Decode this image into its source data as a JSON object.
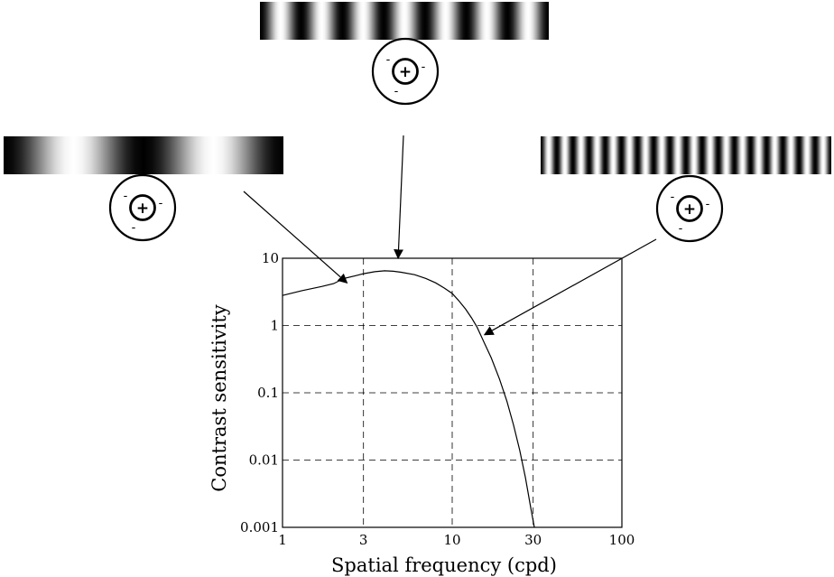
{
  "chart_data": {
    "type": "line",
    "xlabel": "Spatial frequency (cpd)",
    "ylabel": "Contrast sensitivity",
    "x_scale": "log",
    "y_scale": "log",
    "xlim": [
      1,
      100
    ],
    "ylim": [
      0.001,
      10
    ],
    "x_ticks": [
      1,
      3,
      10,
      30,
      100
    ],
    "x_tick_labels": [
      "1",
      "3",
      "10",
      "30",
      "100"
    ],
    "y_ticks": [
      0.001,
      0.01,
      0.1,
      1,
      10
    ],
    "y_tick_labels": [
      "0.001",
      "0.01",
      "0.1",
      "1",
      "10"
    ],
    "grid": true,
    "grid_style": "dashed",
    "series": [
      {
        "color": "#000000",
        "x": [
          1.0,
          1.3,
          1.7,
          2.0,
          2.3,
          2.7,
          3.0,
          3.5,
          4.0,
          4.5,
          5.0,
          6.0,
          7.0,
          8.0,
          9.0,
          10.0,
          11.0,
          12.0,
          13.0,
          14.0,
          15.0,
          17.0,
          19.0,
          21.0,
          23.0,
          25.0,
          27.0,
          29.0,
          30.5
        ],
        "y": [
          2.8,
          3.3,
          3.8,
          4.2,
          5.0,
          5.5,
          5.9,
          6.3,
          6.5,
          6.4,
          6.2,
          5.7,
          5.0,
          4.3,
          3.6,
          3.0,
          2.3,
          1.75,
          1.3,
          0.95,
          0.65,
          0.33,
          0.16,
          0.075,
          0.033,
          0.014,
          0.0055,
          0.002,
          0.00095
        ]
      }
    ],
    "annotations": [
      {
        "target": "low-frequency stimulus",
        "points_to_x": 2.4,
        "points_to_y": 4.3
      },
      {
        "target": "peak-frequency stimulus",
        "points_to_x": 4.8,
        "points_to_y": 10
      },
      {
        "target": "high-frequency stimulus",
        "points_to_x": 15.5,
        "points_to_y": 0.73
      }
    ]
  },
  "stimuli": [
    {
      "name": "low-frequency grating",
      "cycles": 2
    },
    {
      "name": "mid-frequency grating",
      "cycles": 7
    },
    {
      "name": "high-frequency grating",
      "cycles": 18
    }
  ],
  "receptive_field": {
    "center_sign": "+",
    "surround_sign": "-"
  }
}
